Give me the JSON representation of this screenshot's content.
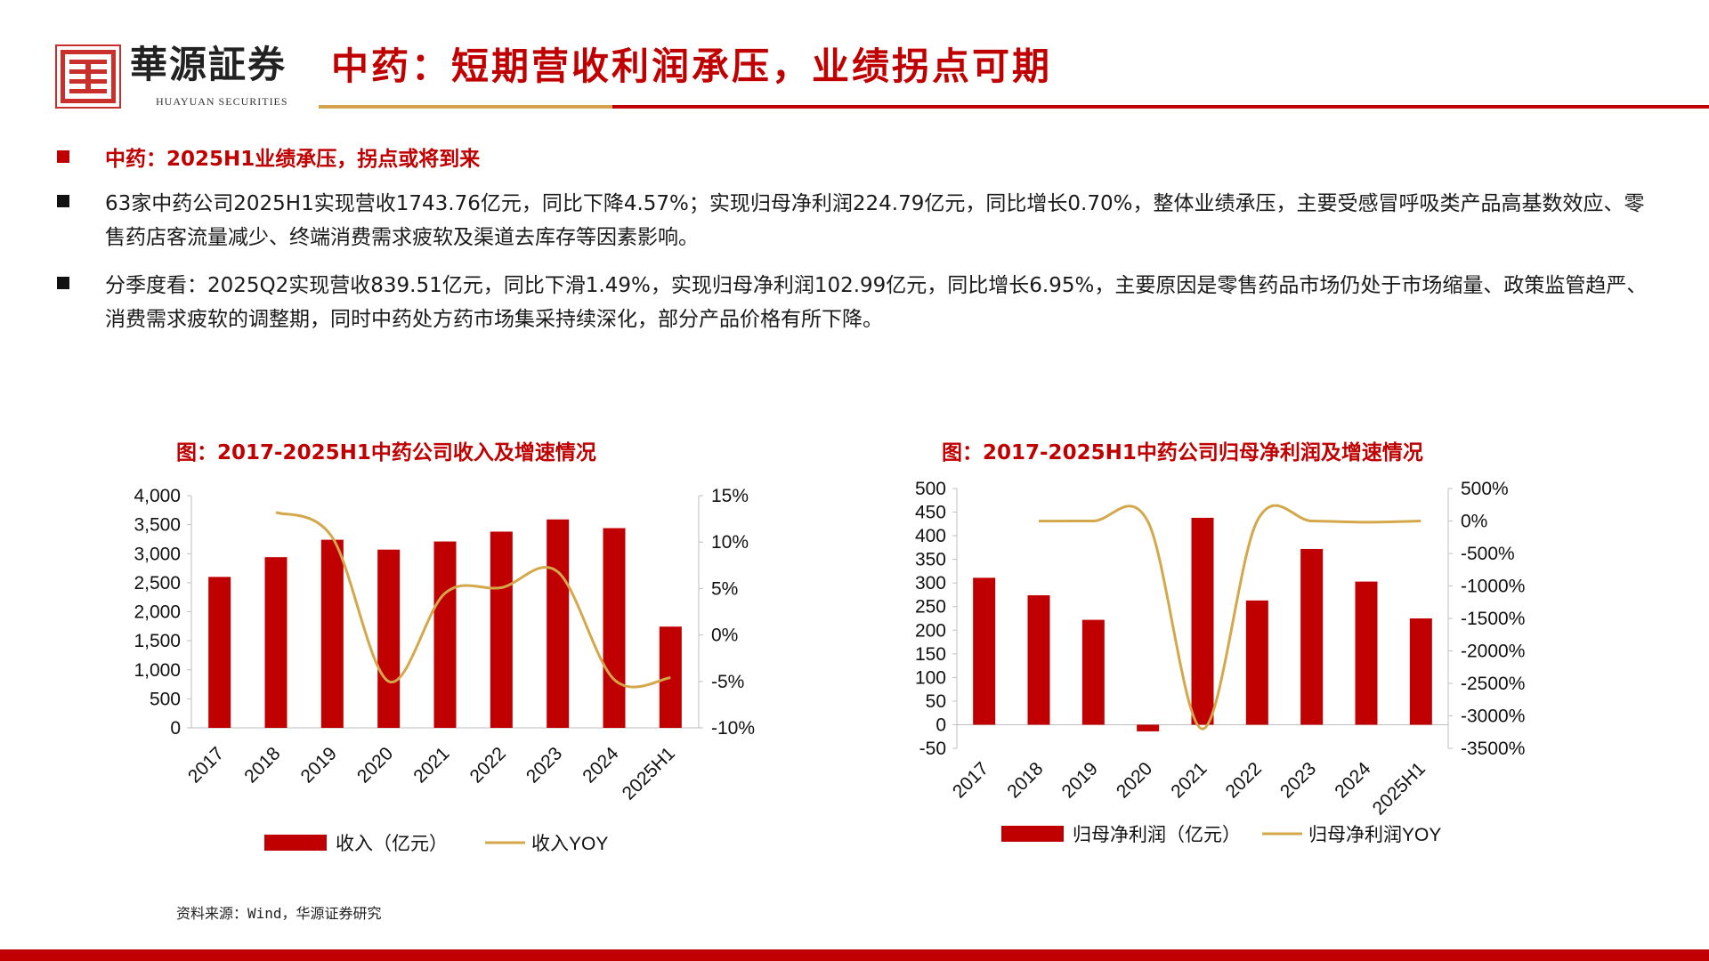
{
  "header": {
    "brand_cn": "華源証券",
    "brand_en": "HUAYUAN SECURITIES",
    "title": "中药：短期营收利润承压，业绩拐点可期"
  },
  "bullets": [
    {
      "style": "red",
      "text": "中药：2025H1业绩承压，拐点或将到来"
    },
    {
      "style": "black",
      "text": "63家中药公司2025H1实现营收1743.76亿元，同比下降4.57%；实现归母净利润224.79亿元，同比增长0.70%，整体业绩承压，主要受感冒呼吸类产品高基数效应、零售药店客流量减少、终端消费需求疲软及渠道去库存等因素影响。"
    },
    {
      "style": "black",
      "text": "分季度看：2025Q2实现营收839.51亿元，同比下滑1.49%，实现归母净利润102.99亿元，同比增长6.95%，主要原因是零售药品市场仍处于市场缩量、政策监管趋严、消费需求疲软的调整期，同时中药处方药市场集采持续深化，部分产品价格有所下降。"
    }
  ],
  "source": "资料来源：Wind，华源证券研究",
  "colors": {
    "bar": "#c00000",
    "line": "#d4a84a",
    "accent_red": "#c00000",
    "accent_gold": "#d4a24c"
  },
  "chart_data": [
    {
      "type": "bar",
      "title": "图：2017-2025H1中药公司收入及增速情况",
      "categories": [
        "2017",
        "2018",
        "2019",
        "2020",
        "2021",
        "2022",
        "2023",
        "2024",
        "2025H1"
      ],
      "series": [
        {
          "name": "收入（亿元）",
          "type": "bar",
          "axis": "left",
          "values": [
            2600,
            2940,
            3240,
            3070,
            3210,
            3380,
            3590,
            3440,
            1744
          ]
        },
        {
          "name": "收入YOY",
          "type": "line",
          "axis": "right",
          "values": [
            null,
            13.2,
            10.5,
            -5.0,
            4.5,
            5.1,
            6.8,
            -4.8,
            -4.6
          ]
        }
      ],
      "ylim": [
        0,
        4000
      ],
      "yticks": [
        "4,000",
        "3,500",
        "3,000",
        "2,500",
        "2,000",
        "1,500",
        "1,000",
        "500",
        "0"
      ],
      "y2lim": [
        -10,
        15
      ],
      "y2ticks": [
        "15%",
        "10%",
        "5%",
        "0%",
        "-5%",
        "-10%"
      ],
      "legend": "bottom"
    },
    {
      "type": "bar",
      "title": "图：2017-2025H1中药公司归母净利润及增速情况",
      "categories": [
        "2017",
        "2018",
        "2019",
        "2020",
        "2021",
        "2022",
        "2023",
        "2024",
        "2025H1"
      ],
      "series": [
        {
          "name": "归母净利润（亿元）",
          "type": "bar",
          "axis": "left",
          "values": [
            311,
            274,
            222,
            -14,
            438,
            263,
            372,
            303,
            225
          ]
        },
        {
          "name": "归母净利润YOY",
          "type": "line",
          "axis": "right",
          "values": [
            null,
            -1,
            0,
            -10,
            -3200,
            0,
            0,
            -18,
            0
          ]
        }
      ],
      "ylim": [
        -50,
        500
      ],
      "yticks": [
        "500",
        "450",
        "400",
        "350",
        "300",
        "250",
        "200",
        "150",
        "100",
        "50",
        "0",
        "-50"
      ],
      "y2lim": [
        -3500,
        500
      ],
      "y2ticks": [
        "500%",
        "0%",
        "-500%",
        "-1000%",
        "-1500%",
        "-2000%",
        "-2500%",
        "-3000%",
        "-3500%"
      ],
      "legend": "bottom"
    }
  ]
}
